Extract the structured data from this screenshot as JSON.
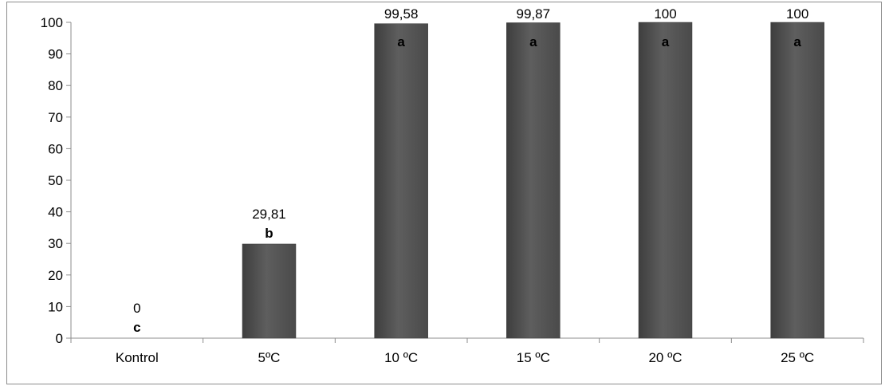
{
  "chart_data": {
    "type": "bar",
    "categories": [
      "Kontrol",
      "5ºC",
      "10 ºC",
      "15 ºC",
      "20 ºC",
      "25 ºC"
    ],
    "values": [
      0,
      29.81,
      99.58,
      99.87,
      100,
      100
    ],
    "value_labels": [
      "0",
      "29,81",
      "99,58",
      "99,87",
      "100",
      "100"
    ],
    "significance_letters": [
      "c",
      "b",
      "a",
      "a",
      "a",
      "a"
    ],
    "ylim": [
      0,
      100
    ],
    "yticks": [
      0,
      10,
      20,
      30,
      40,
      50,
      60,
      70,
      80,
      90,
      100
    ],
    "grid": false,
    "legend": "none",
    "bar_color": "#555555"
  }
}
